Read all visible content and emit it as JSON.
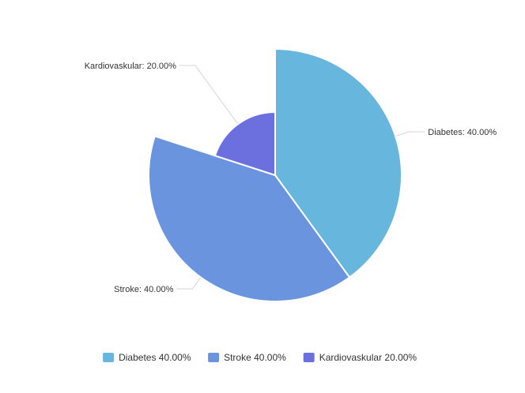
{
  "chart_data": {
    "type": "pie",
    "rose_type": "radius",
    "title": "",
    "categories": [
      "Diabetes",
      "Stroke",
      "Kardiovaskular"
    ],
    "values": [
      40,
      40,
      20
    ],
    "percent_labels": [
      "40.00%",
      "40.00%",
      "20.00%"
    ],
    "slice_labels": [
      "Diabetes: 40.00%",
      "Stroke: 40.00%",
      "Kardiovaskular: 20.00%"
    ],
    "legend_labels": [
      "Diabetes 40.00%",
      "Stroke 40.00%",
      "Kardiovaskular 20.00%"
    ],
    "colors": [
      "#67b6dd",
      "#6a94de",
      "#6b70de"
    ],
    "legend_position": "bottom-center"
  }
}
